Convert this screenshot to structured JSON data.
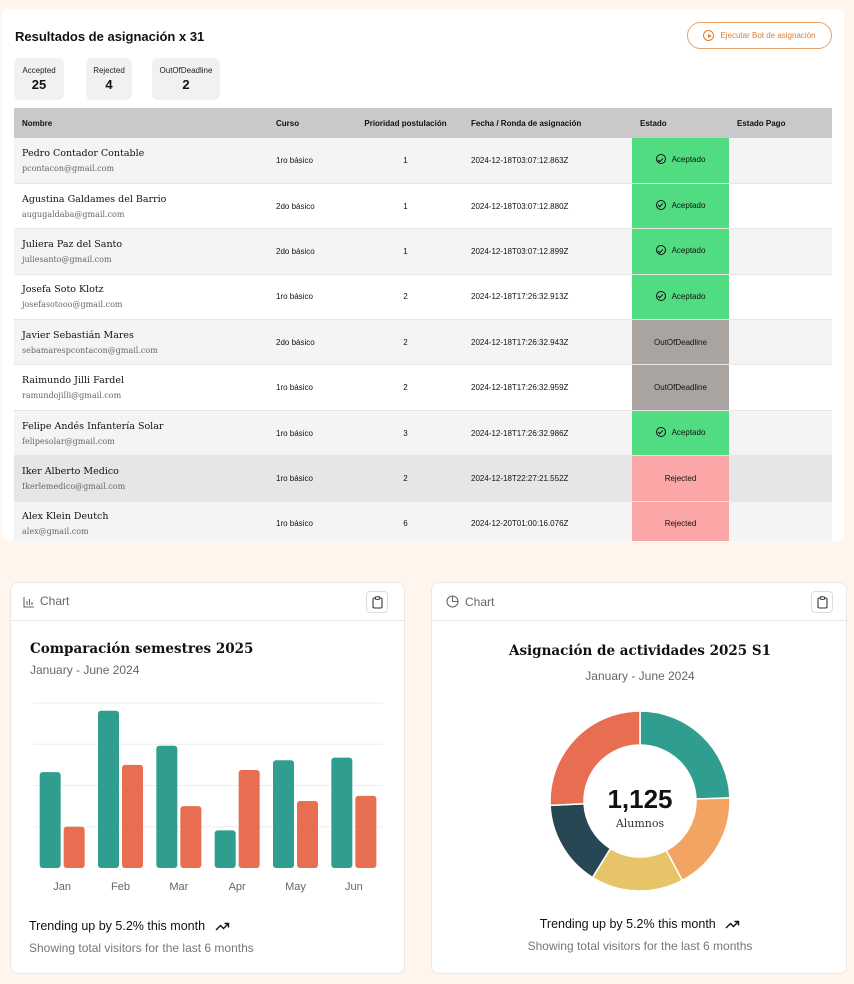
{
  "results": {
    "title": "Resultados de asignación x 31",
    "bot_button": "Ejecutar Bot de asignación",
    "stats": [
      {
        "label": "Accepted",
        "value": "25"
      },
      {
        "label": "Rejected",
        "value": "4"
      },
      {
        "label": "OutOfDeadline",
        "value": "2"
      }
    ],
    "columns": [
      "Nombre",
      "Curso",
      "Prioridad postulación",
      "Fecha / Ronda de asignación",
      "Estado",
      "Estado Pago"
    ],
    "rows": [
      {
        "name": "Pedro Contador Contable",
        "email": "pcontacon@gmail.com",
        "curso": "1ro básico",
        "prioridad": "1",
        "fecha": "2024-12-18T03:07:12.863Z",
        "estado": "Aceptado"
      },
      {
        "name": "Agustina Galdames del Barrio",
        "email": "augugaldaba@gmail.com",
        "curso": "2do básico",
        "prioridad": "1",
        "fecha": "2024-12-18T03:07:12.880Z",
        "estado": "Aceptado"
      },
      {
        "name": "Juliera Paz del Santo",
        "email": "juliesanto@gmail.com",
        "curso": "2do básico",
        "prioridad": "1",
        "fecha": "2024-12-18T03:07:12.899Z",
        "estado": "Aceptado"
      },
      {
        "name": "Josefa Soto Klotz",
        "email": "josefasotooo@gmail.com",
        "curso": "1ro básico",
        "prioridad": "2",
        "fecha": "2024-12-18T17:26:32.913Z",
        "estado": "Aceptado"
      },
      {
        "name": "Javier Sebastián Mares",
        "email": "sebamarespcontacon@gmail.com",
        "curso": "2do básico",
        "prioridad": "2",
        "fecha": "2024-12-18T17:26:32.943Z",
        "estado": "OutOfDeadline"
      },
      {
        "name": "Raimundo Jilli Fardel",
        "email": "ramundojilli@gmail.com",
        "curso": "1ro básico",
        "prioridad": "2",
        "fecha": "2024-12-18T17:26:32.959Z",
        "estado": "OutOfDeadline"
      },
      {
        "name": "Felipe Andés Infantería Solar",
        "email": "felipesolar@gmail.com",
        "curso": "1ro básico",
        "prioridad": "3",
        "fecha": "2024-12-18T17:26:32.986Z",
        "estado": "Aceptado"
      },
      {
        "name": "Iker Alberto Medico",
        "email": "Ikerlemedico@gmail.com",
        "curso": "1ro básico",
        "prioridad": "2",
        "fecha": "2024-12-18T22:27:21.552Z",
        "estado": "Rejected"
      },
      {
        "name": "Alex Klein Deutch",
        "email": "alex@gmail.com",
        "curso": "1ro básico",
        "prioridad": "6",
        "fecha": "2024-12-20T01:00:16.076Z",
        "estado": "Rejected"
      }
    ],
    "colors": {
      "accepted": "#52dc82",
      "out_of_deadline": "#a9a49f",
      "rejected": "#fba7a7"
    }
  },
  "bar_card": {
    "header": "Chart",
    "title": "Comparación semestres 2025",
    "subtitle": "January - June 2024",
    "trend": "Trending up by 5.2% this month",
    "footer": "Showing total visitors for the last 6 months"
  },
  "donut_card": {
    "header": "Chart",
    "title": "Asignación de actividades 2025 S1",
    "subtitle": "January - June 2024",
    "center_value": "1,125",
    "center_label": "Alumnos",
    "trend": "Trending up by 5.2% this month",
    "footer": "Showing total visitors for the last 6 months"
  },
  "chart_data": [
    {
      "type": "bar",
      "title": "Comparación semestres 2025",
      "subtitle": "January - June 2024",
      "categories": [
        "Jan",
        "Feb",
        "Mar",
        "Apr",
        "May",
        "Jun"
      ],
      "series": [
        {
          "values": [
            186,
            305,
            237,
            73,
            209,
            214
          ],
          "color": "#2f9e8f"
        },
        {
          "values": [
            80,
            200,
            120,
            190,
            130,
            140
          ],
          "color": "#e76e50"
        }
      ],
      "ylim": [
        0,
        320
      ],
      "grid": true
    },
    {
      "type": "pie",
      "title": "Asignación de actividades 2025 S1",
      "subtitle": "January - June 2024",
      "values": [
        275,
        200,
        187,
        173,
        290
      ],
      "colors": [
        "#2f9e8f",
        "#f4a462",
        "#e8c468",
        "#274754",
        "#e76e50"
      ],
      "donut": true,
      "total_label": "1,125"
    }
  ]
}
